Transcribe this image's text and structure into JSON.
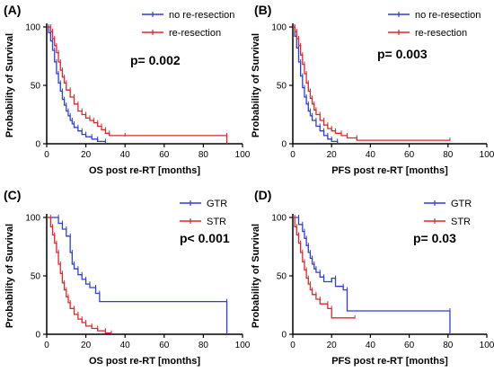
{
  "figure": {
    "y_axis_label": "Probability of Survival"
  },
  "chart_data": [
    {
      "panel": "(A)",
      "type": "line",
      "title": "",
      "xlabel": "OS post re-RT [months]",
      "ylabel": "Probability of Survival",
      "xlim": [
        0,
        100
      ],
      "ylim": [
        0,
        100
      ],
      "xticks": [
        0,
        20,
        40,
        60,
        80,
        100
      ],
      "yticks": [
        0,
        50,
        100
      ],
      "grid": false,
      "legend_position": "top-right",
      "annotation": "p= 0.002",
      "step": true,
      "series": [
        {
          "name": "no re-resection",
          "color": "#2e3fd6",
          "x": [
            0,
            1,
            2,
            3,
            4,
            5,
            6,
            7,
            8,
            9,
            10,
            11,
            12,
            13,
            14,
            16,
            18,
            20,
            23,
            26,
            30
          ],
          "y": [
            100,
            95,
            88,
            80,
            70,
            60,
            52,
            45,
            38,
            33,
            28,
            24,
            20,
            17,
            14,
            11,
            8,
            6,
            4,
            2,
            0
          ]
        },
        {
          "name": "re-resection",
          "color": "#e0262a",
          "x": [
            0,
            2,
            3,
            4,
            5,
            6,
            7,
            8,
            9,
            10,
            12,
            14,
            16,
            18,
            20,
            22,
            24,
            26,
            28,
            30,
            32,
            40,
            92
          ],
          "y": [
            100,
            96,
            90,
            84,
            78,
            70,
            63,
            57,
            52,
            46,
            40,
            34,
            28,
            25,
            22,
            20,
            18,
            15,
            12,
            9,
            7,
            7,
            0
          ]
        }
      ]
    },
    {
      "panel": "(B)",
      "type": "line",
      "title": "",
      "xlabel": "PFS post re-RT [months]",
      "ylabel": "Probability of Survival",
      "xlim": [
        0,
        100
      ],
      "ylim": [
        0,
        100
      ],
      "xticks": [
        0,
        20,
        40,
        60,
        80,
        100
      ],
      "yticks": [
        0,
        50,
        100
      ],
      "grid": false,
      "legend_position": "top-right",
      "annotation": "p= 0.003",
      "step": true,
      "series": [
        {
          "name": "no re-resection",
          "color": "#2e3fd6",
          "x": [
            0,
            1,
            2,
            3,
            4,
            5,
            6,
            7,
            8,
            9,
            10,
            12,
            14,
            16,
            18,
            20,
            23
          ],
          "y": [
            100,
            92,
            82,
            70,
            58,
            48,
            40,
            34,
            28,
            24,
            20,
            15,
            11,
            7,
            4,
            2,
            0
          ]
        },
        {
          "name": "re-resection",
          "color": "#e0262a",
          "x": [
            0,
            1,
            2,
            3,
            4,
            5,
            6,
            7,
            8,
            9,
            10,
            11,
            12,
            14,
            16,
            18,
            20,
            22,
            25,
            28,
            33,
            81
          ],
          "y": [
            100,
            96,
            90,
            84,
            76,
            68,
            60,
            52,
            45,
            39,
            34,
            29,
            25,
            20,
            16,
            13,
            11,
            9,
            7,
            5,
            3,
            3
          ]
        }
      ]
    },
    {
      "panel": "(C)",
      "type": "line",
      "title": "",
      "xlabel": "OS post re-RT [months]",
      "ylabel": "Probability of Survival",
      "xlim": [
        0,
        100
      ],
      "ylim": [
        0,
        100
      ],
      "xticks": [
        0,
        20,
        40,
        60,
        80,
        100
      ],
      "yticks": [
        0,
        50,
        100
      ],
      "grid": false,
      "legend_position": "top-right",
      "annotation": "p< 0.001",
      "step": true,
      "series": [
        {
          "name": "GTR",
          "color": "#2e3fd6",
          "x": [
            0,
            6,
            8,
            10,
            12,
            13,
            14,
            16,
            18,
            20,
            22,
            25,
            27,
            92
          ],
          "y": [
            100,
            95,
            90,
            84,
            70,
            60,
            56,
            51,
            47,
            43,
            40,
            35,
            28,
            0
          ]
        },
        {
          "name": "STR",
          "color": "#e0262a",
          "x": [
            0,
            2,
            3,
            4,
            5,
            6,
            7,
            8,
            9,
            10,
            11,
            12,
            14,
            16,
            18,
            20,
            23,
            26,
            30,
            33
          ],
          "y": [
            100,
            92,
            85,
            78,
            70,
            60,
            52,
            44,
            38,
            32,
            27,
            22,
            17,
            13,
            10,
            7,
            5,
            3,
            1,
            0
          ]
        }
      ]
    },
    {
      "panel": "(D)",
      "type": "line",
      "title": "",
      "xlabel": "PFS post re-RT [months]",
      "ylabel": "Probability of Survival",
      "xlim": [
        0,
        100
      ],
      "ylim": [
        0,
        100
      ],
      "xticks": [
        0,
        20,
        40,
        60,
        80,
        100
      ],
      "yticks": [
        0,
        50,
        100
      ],
      "grid": false,
      "legend_position": "top-right",
      "annotation": "p= 0.03",
      "step": true,
      "series": [
        {
          "name": "GTR",
          "color": "#2e3fd6",
          "x": [
            0,
            3,
            5,
            6,
            7,
            8,
            9,
            10,
            11,
            12,
            14,
            16,
            20,
            22,
            26,
            28,
            81
          ],
          "y": [
            100,
            94,
            88,
            82,
            76,
            70,
            65,
            60,
            56,
            53,
            49,
            45,
            48,
            41,
            38,
            20,
            0
          ]
        },
        {
          "name": "STR",
          "color": "#e0262a",
          "x": [
            0,
            1,
            2,
            3,
            4,
            5,
            6,
            7,
            8,
            9,
            10,
            12,
            14,
            18,
            20,
            32
          ],
          "y": [
            100,
            92,
            85,
            78,
            70,
            62,
            55,
            48,
            43,
            38,
            34,
            30,
            26,
            22,
            14,
            14
          ]
        }
      ]
    }
  ]
}
